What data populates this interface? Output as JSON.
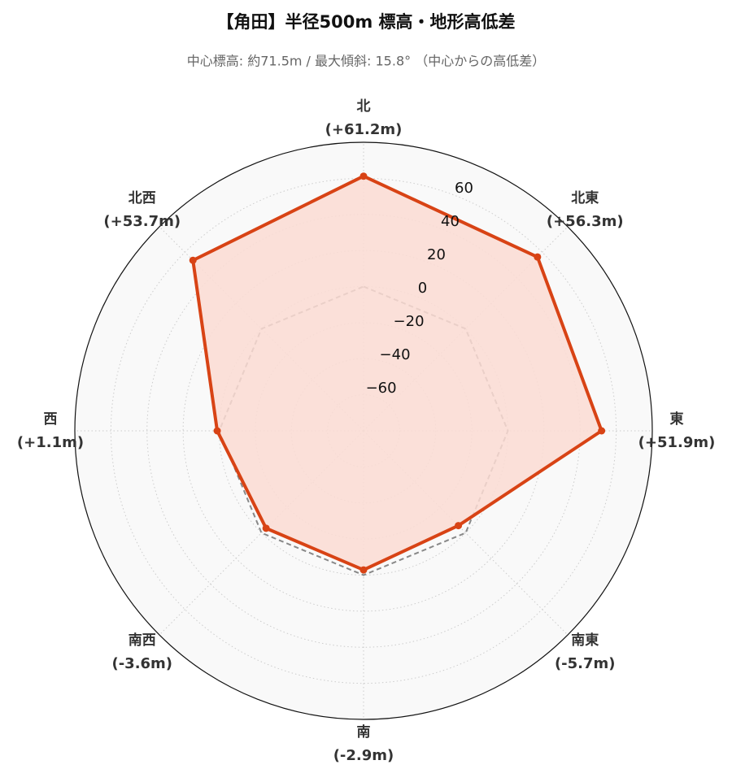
{
  "chart_data": {
    "type": "radar",
    "title": "【角田】半径500m 標高・地形高低差",
    "subtitle": "中心標高: 約71.5m / 最大傾斜: 15.8° （中心からの高低差）",
    "categories": [
      "北",
      "北東",
      "東",
      "南東",
      "南",
      "南西",
      "西",
      "北西"
    ],
    "values": [
      61.2,
      56.3,
      51.9,
      -5.7,
      -2.9,
      -3.6,
      1.1,
      53.7
    ],
    "value_labels": [
      "(+61.2m)",
      "(+56.3m)",
      "(+51.9m)",
      "(-5.7m)",
      "(-2.9m)",
      "(-3.6m)",
      "(+1.1m)",
      "(+53.7m)"
    ],
    "color": "#d84315",
    "fill_color": "#fbdcd4",
    "reference_value": 0,
    "reference_color": "#888888",
    "ylim": [
      -80,
      80
    ],
    "yticks": [
      {
        "value": -60,
        "label": "−60"
      },
      {
        "value": -40,
        "label": "−40"
      },
      {
        "value": -20,
        "label": "−20"
      },
      0,
      20,
      40,
      60
    ],
    "grid": true
  }
}
